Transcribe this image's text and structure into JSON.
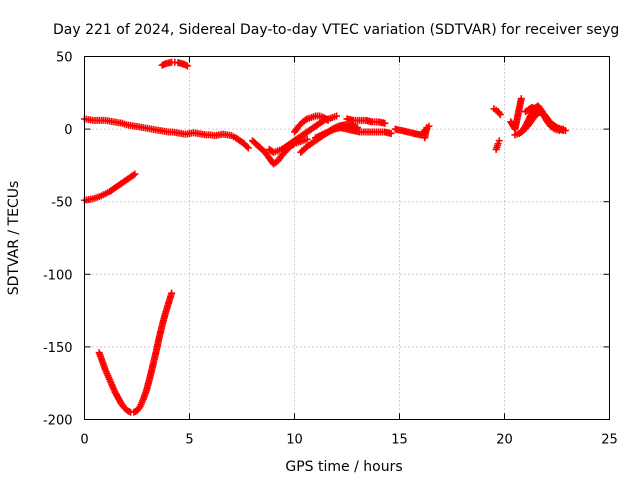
{
  "chart_data": {
    "type": "scatter",
    "title": "Day 221 of 2024, Sidereal Day-to-day VTEC variation (SDTVAR) for receiver seyg",
    "xlabel": "GPS time / hours",
    "ylabel": "SDTVAR / TECUs",
    "xlim": [
      0,
      25
    ],
    "ylim": [
      -200,
      50
    ],
    "xticks": [
      0,
      5,
      10,
      15,
      20,
      25
    ],
    "yticks": [
      -200,
      -150,
      -100,
      -50,
      0,
      50
    ],
    "xtick_labels": [
      "0",
      "5",
      "10",
      "15",
      "20",
      "25"
    ],
    "ytick_labels": [
      "-200",
      "-150",
      "-100",
      "-50",
      "0",
      "50"
    ],
    "grid": true,
    "marker": "+",
    "color": "#ff0000",
    "series": [
      {
        "name": "track-high-arc",
        "x": [
          3.7,
          3.85,
          4.0,
          4.15,
          4.3,
          4.45,
          4.6,
          4.75,
          4.9
        ],
        "y": [
          44,
          45,
          45.5,
          46,
          46,
          45.8,
          45.3,
          44.6,
          43.5
        ]
      },
      {
        "name": "track-main",
        "x": [
          0.0,
          0.2,
          0.4,
          0.6,
          0.8,
          1.0,
          1.2,
          1.4,
          1.6,
          1.8,
          2.0,
          2.2,
          2.4,
          2.6,
          2.8,
          3.0,
          3.2,
          3.4,
          3.6,
          3.8,
          4.0,
          4.2,
          4.4,
          4.6,
          4.8,
          5.0,
          5.2,
          5.4,
          5.6,
          5.8,
          6.0,
          6.2,
          6.4,
          6.6,
          6.8,
          7.0,
          7.2,
          7.4,
          7.6,
          7.8
        ],
        "y": [
          7,
          6.5,
          6,
          6,
          6,
          6,
          5.5,
          5,
          4.5,
          4,
          3,
          2.5,
          2,
          1.5,
          1,
          0.5,
          0,
          -0.5,
          -1,
          -1.5,
          -2,
          -2,
          -2.5,
          -3,
          -3.5,
          -3,
          -2.5,
          -3,
          -3.5,
          -4,
          -4,
          -4.5,
          -4,
          -3.5,
          -4,
          -4.5,
          -6,
          -8,
          -10,
          -13
        ]
      },
      {
        "name": "track-minus-50",
        "x": [
          0.0,
          0.2,
          0.4,
          0.6,
          0.8,
          1.0,
          1.2,
          1.4,
          1.6,
          1.8,
          2.0,
          2.2,
          2.4
        ],
        "y": [
          -49,
          -48.5,
          -48,
          -47,
          -46,
          -44.5,
          -43,
          -41,
          -39,
          -37,
          -35,
          -33,
          -31
        ]
      },
      {
        "name": "track-deep-u",
        "x": [
          0.7,
          0.85,
          1.0,
          1.15,
          1.3,
          1.45,
          1.6,
          1.75,
          1.9,
          2.05,
          2.2,
          2.35,
          2.5,
          2.65,
          2.8,
          2.95,
          3.1,
          3.25,
          3.4,
          3.55,
          3.7,
          3.85,
          4.0,
          4.15
        ],
        "y": [
          -154,
          -160,
          -166,
          -171,
          -176,
          -181,
          -185,
          -189,
          -192,
          -194,
          -195,
          -195,
          -194,
          -191,
          -186,
          -180,
          -172,
          -163,
          -154,
          -144,
          -135,
          -127,
          -120,
          -113
        ]
      },
      {
        "name": "track-8h-dip",
        "x": [
          8.0,
          8.3,
          8.6,
          8.8,
          9.0,
          9.2,
          9.4,
          9.6,
          9.8,
          10.0,
          10.2,
          10.4,
          10.6
        ],
        "y": [
          -8,
          -12,
          -16,
          -20,
          -24,
          -22,
          -18,
          -15,
          -12,
          -10,
          -9,
          -8,
          -7
        ]
      },
      {
        "name": "track-9h-a",
        "x": [
          8.8,
          9.0,
          9.2,
          9.4,
          9.6,
          9.8,
          10.0,
          10.2,
          10.4,
          10.6,
          10.8,
          11.0,
          11.2,
          11.4,
          11.6,
          11.8,
          12.0
        ],
        "y": [
          -14,
          -16,
          -15,
          -14,
          -12,
          -10,
          -8,
          -6,
          -4,
          -2,
          0,
          2,
          4,
          6,
          7,
          8,
          9
        ]
      },
      {
        "name": "track-10h-b",
        "x": [
          10.0,
          10.2,
          10.4,
          10.6,
          10.8,
          11.0,
          11.2,
          11.4,
          11.6
        ],
        "y": [
          -2,
          2,
          5,
          7,
          8,
          9,
          9,
          8,
          6
        ]
      },
      {
        "name": "track-10h-c",
        "x": [
          10.3,
          10.6,
          10.9,
          11.2,
          11.5,
          11.8,
          12.1,
          12.4,
          12.7,
          13.0
        ],
        "y": [
          -16,
          -12,
          -9,
          -6,
          -3,
          0,
          2,
          3,
          2,
          1
        ]
      },
      {
        "name": "track-11h-d",
        "x": [
          11.0,
          11.3,
          11.6,
          11.9,
          12.2,
          12.5,
          12.8,
          13.1,
          13.4,
          13.7,
          14.0,
          14.3,
          14.6
        ],
        "y": [
          -6,
          -4,
          -2,
          0,
          1,
          0,
          -1,
          -2,
          -2,
          -2,
          -2,
          -2,
          -3
        ]
      },
      {
        "name": "track-13h",
        "x": [
          12.5,
          12.8,
          13.1,
          13.4,
          13.7,
          14.0,
          14.3
        ],
        "y": [
          7,
          6,
          6,
          6,
          5,
          5,
          4
        ]
      },
      {
        "name": "track-15h",
        "x": [
          14.8,
          15.1,
          15.4,
          15.7,
          16.0,
          16.3
        ],
        "y": [
          0,
          -1,
          -2,
          -3,
          -4,
          0
        ]
      },
      {
        "name": "track-16h",
        "x": [
          16.2,
          16.3,
          16.4
        ],
        "y": [
          -6,
          1,
          2
        ]
      },
      {
        "name": "track-19h-a",
        "x": [
          19.5,
          19.6,
          19.7,
          19.8
        ],
        "y": [
          14,
          13,
          12,
          10
        ]
      },
      {
        "name": "track-19h-b",
        "x": [
          19.6,
          19.7,
          19.75
        ],
        "y": [
          -14,
          -10,
          -8
        ]
      },
      {
        "name": "track-20h-cross",
        "x": [
          20.3,
          20.5,
          20.8
        ],
        "y": [
          5,
          0,
          21
        ]
      },
      {
        "name": "track-21h-a",
        "x": [
          20.5,
          20.7,
          20.9,
          21.1,
          21.3,
          21.5,
          21.7,
          21.9,
          22.1,
          22.3,
          22.5,
          22.7,
          22.9
        ],
        "y": [
          -4,
          -3,
          -1,
          2,
          6,
          10,
          12,
          10,
          6,
          3,
          1,
          0,
          -1
        ]
      },
      {
        "name": "track-21h-b",
        "x": [
          20.8,
          21.0,
          21.2,
          21.4,
          21.6,
          21.8,
          22.0,
          22.2,
          22.4,
          22.6,
          22.8
        ],
        "y": [
          -2,
          2,
          8,
          14,
          16,
          12,
          6,
          2,
          0,
          -1,
          0
        ]
      },
      {
        "name": "track-21h-c",
        "x": [
          21.0,
          21.3,
          21.6,
          21.9,
          22.2,
          22.5,
          22.8
        ],
        "y": [
          12,
          15,
          13,
          9,
          4,
          1,
          -1
        ]
      }
    ]
  }
}
